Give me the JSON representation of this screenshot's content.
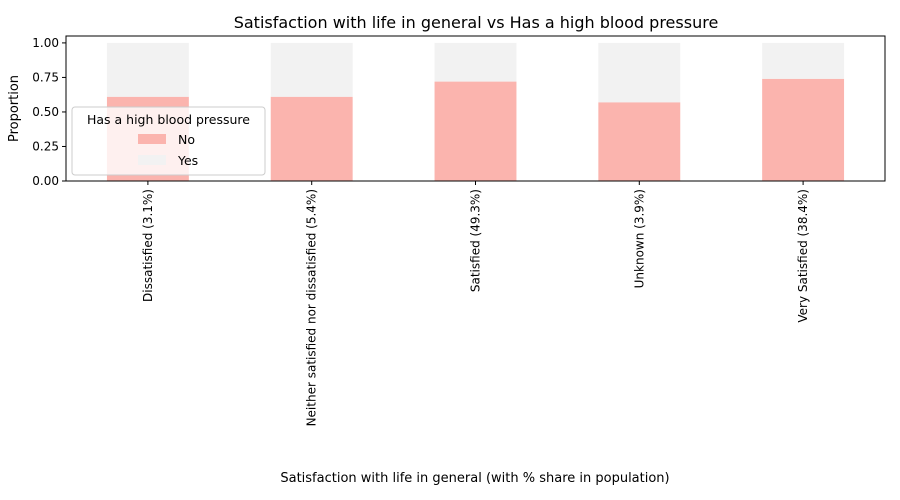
{
  "chart_data": {
    "type": "bar",
    "stacked": true,
    "title": "Satisfaction with life in general  vs Has a high blood pressure",
    "xlabel": "Satisfaction with life in general  (with % share in population)",
    "ylabel": "Proportion",
    "ylim": [
      0,
      1.05
    ],
    "yticks": [
      "0.00",
      "0.25",
      "0.50",
      "0.75",
      "1.00"
    ],
    "categories": [
      "Dissatisfied (3.1%)",
      "Neither satisfied nor dissatisfied (5.4%)",
      "Satisfied (49.3%)",
      "Unknown (3.9%)",
      "Very Satisfied (38.4%)"
    ],
    "series": [
      {
        "name": "No",
        "color": "#fbb4ae",
        "values": [
          0.61,
          0.61,
          0.72,
          0.57,
          0.74
        ]
      },
      {
        "name": "Yes",
        "color": "#f2f2f2",
        "values": [
          0.39,
          0.39,
          0.28,
          0.43,
          0.26
        ]
      }
    ],
    "legend": {
      "title": "Has a high blood pressure",
      "placement": "center-left"
    },
    "grid": false
  }
}
